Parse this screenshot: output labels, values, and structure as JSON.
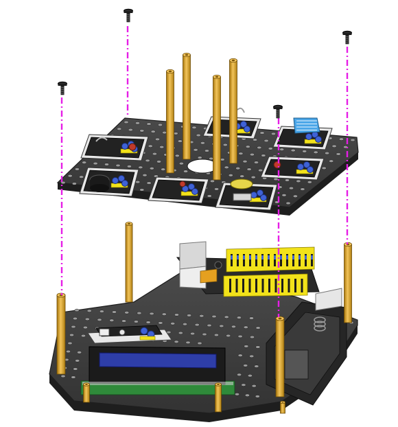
{
  "diagram": {
    "type": "exploded-assembly",
    "assembly_line_color": "#e61ee6",
    "plate_color": "#3b3b3b",
    "plate_edge_color": "#1e1e1e",
    "plate_hole_color": "#9a9a9a",
    "standoff_color": "#d9a21e",
    "module_board_color": "#222222",
    "module_frame_color": "#e8e8e8",
    "pin_header_color": "#f2e21a",
    "connector_blue": "#3f62d6",
    "lcd_screen_color": "#2e3ea8",
    "pcb_green": "#2f8a3a",
    "parts": [
      {
        "name": "top-plate",
        "type": "perforated acrylic plate"
      },
      {
        "name": "bottom-plate",
        "type": "perforated acrylic plate"
      },
      {
        "name": "screw",
        "count": 4
      },
      {
        "name": "standoff",
        "count": 8
      },
      {
        "name": "sensor-module",
        "count": 7
      },
      {
        "name": "lcd-module",
        "count": 1
      },
      {
        "name": "controller-board",
        "count": 1
      },
      {
        "name": "battery-holder",
        "count": 1
      }
    ]
  }
}
